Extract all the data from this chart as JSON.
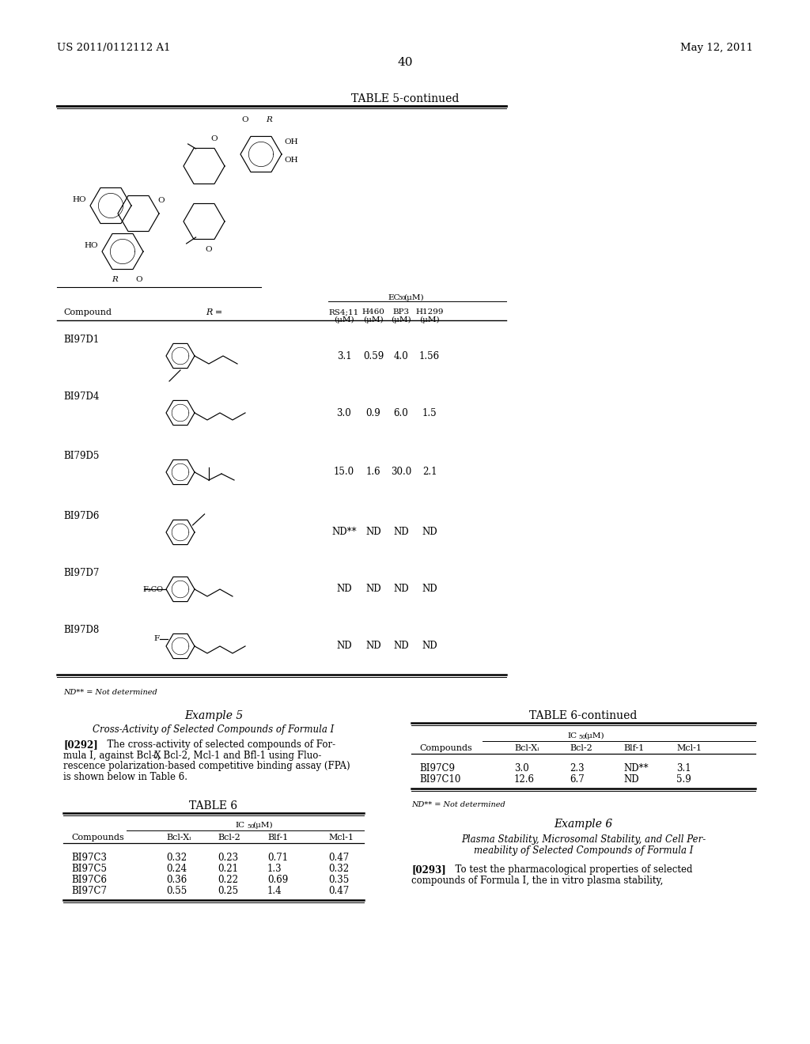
{
  "page_number": "40",
  "patent_number": "US 2011/0112112 A1",
  "patent_date": "May 12, 2011",
  "bg": "#ffffff",
  "fg": "#000000",
  "table5_title": "TABLE 5-continued",
  "ec50_label": "EC",
  "ec50_sub": "50",
  "ec50_unit": "(μM)",
  "col_headers": [
    "RS4;11",
    "H460",
    "BP3",
    "H1299"
  ],
  "col_units": [
    "(μM)",
    "(μM)",
    "(μM)",
    "(μM)"
  ],
  "table5_compounds": [
    "BI97D1",
    "BI97D4",
    "BI79D5",
    "BI97D6",
    "BI97D7",
    "BI97D8"
  ],
  "table5_values": [
    [
      "3.1",
      "0.59",
      "4.0",
      "1.56"
    ],
    [
      "3.0",
      "0.9",
      "6.0",
      "1.5"
    ],
    [
      "15.0",
      "1.6",
      "30.0",
      "2.1"
    ],
    [
      "ND**",
      "ND",
      "ND",
      "ND"
    ],
    [
      "ND",
      "ND",
      "ND",
      "ND"
    ],
    [
      "ND",
      "ND",
      "ND",
      "ND"
    ]
  ],
  "nd_note": "ND** = Not determined",
  "example5_title": "Example 5",
  "example5_sub": "Cross-Activity of Selected Compounds of Formula I",
  "para0292_lines": [
    "[0292]   The cross-activity of selected compounds of For-",
    "mula I, against Bcl-X",
    "L",
    ", Bcl-2, Mcl-1 and Bfl-1 using Fluo-",
    "rescence polarization-based competitive binding assay (FPA)",
    "is shown below in Table 6."
  ],
  "table6_title": "TABLE 6",
  "ic50_label": "IC",
  "ic50_sub": "50",
  "ic50_unit": "(μM)",
  "table6_header": [
    "Compounds",
    "Bcl-X",
    "Bcl-2",
    "Blf-1",
    "Mcl-1"
  ],
  "table6_rows": [
    [
      "BI97C3",
      "0.32",
      "0.23",
      "0.71",
      "0.47"
    ],
    [
      "BI97C5",
      "0.24",
      "0.21",
      "1.3",
      "0.32"
    ],
    [
      "BI97C6",
      "0.36",
      "0.22",
      "0.69",
      "0.35"
    ],
    [
      "BI97C7",
      "0.55",
      "0.25",
      "1.4",
      "0.47"
    ]
  ],
  "table6c_title": "TABLE 6-continued",
  "table6c_header": [
    "Compounds",
    "Bcl-X",
    "Bcl-2",
    "Blf-1",
    "Mcl-1"
  ],
  "table6c_rows": [
    [
      "BI97C9",
      "3.0",
      "2.3",
      "ND**",
      "3.1"
    ],
    [
      "BI97C10",
      "12.6",
      "6.7",
      "ND",
      "5.9"
    ]
  ],
  "nd_note2": "ND** = Not determined",
  "example6_title": "Example 6",
  "example6_sub1": "Plasma Stability, Microsomal Stability, and Cell Per-",
  "example6_sub2": "meability of Selected Compounds of Formula I",
  "para0293_lines": [
    "[0293]   To test the pharmacological properties of selected",
    "compounds of Formula I, the in vitro plasma stability,"
  ]
}
